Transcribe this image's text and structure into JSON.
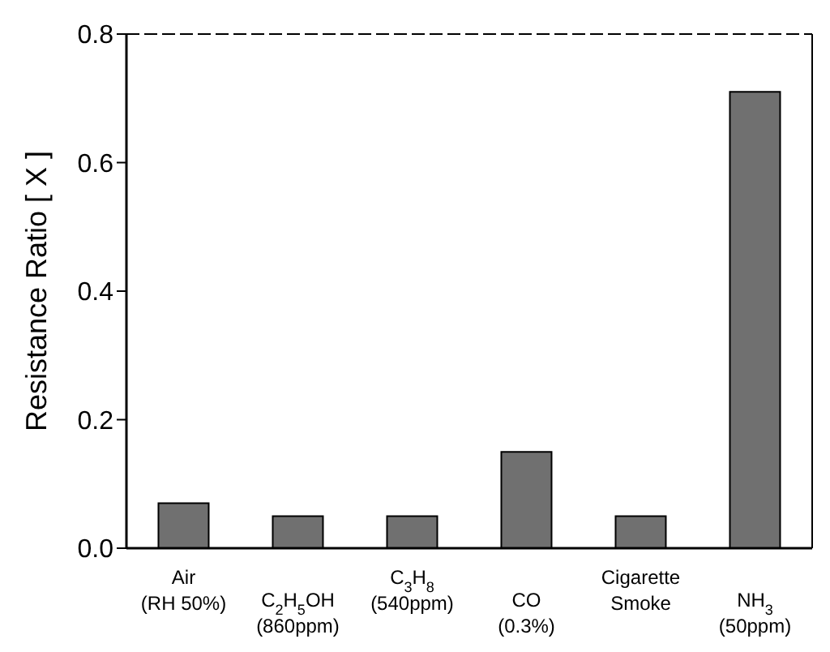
{
  "chart_data": {
    "type": "bar",
    "ylabel": "Resistance Ratio [ X ]",
    "categories": [
      "Air\n(RH 50%)",
      "C$_{2}$H$_{5}$OH\n(860ppm)",
      "C$_{3}$H$_{8}$\n(540ppm)",
      "CO\n(0.3%)",
      "Cigarette\nSmoke",
      "NH$_{3}$\n(50ppm)"
    ],
    "values": [
      0.07,
      0.05,
      0.05,
      0.15,
      0.05,
      0.71
    ],
    "color": "#707070",
    "ylim": [
      0,
      0.8
    ],
    "yticks": [
      {
        "value": 0,
        "label": "0.0"
      },
      0.2,
      0.4,
      0.6,
      0.8
    ]
  }
}
